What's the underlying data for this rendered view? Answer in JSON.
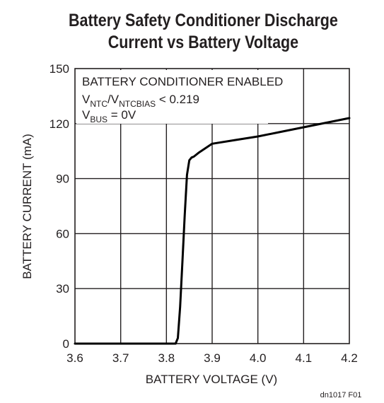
{
  "chart_data": {
    "type": "line",
    "title_line1": "Battery Safety Conditioner Discharge",
    "title_line2": "Current vs Battery Voltage",
    "xlabel": "BATTERY VOLTAGE (V)",
    "ylabel": "BATTERY CURRENT (mA)",
    "xlim": [
      3.6,
      4.2
    ],
    "ylim": [
      0,
      150
    ],
    "x_ticks": [
      3.6,
      3.7,
      3.8,
      3.9,
      4.0,
      4.1,
      4.2
    ],
    "x_tick_labels": [
      "3.6",
      "3.7",
      "3.8",
      "3.9",
      "4.0",
      "4.1",
      "4.2"
    ],
    "y_ticks": [
      0,
      30,
      60,
      90,
      120,
      150
    ],
    "y_tick_labels": [
      "0",
      "30",
      "60",
      "90",
      "120",
      "150"
    ],
    "grid": true,
    "annotations": {
      "line1": "BATTERY CONDITIONER ENABLED",
      "line2_a": "V",
      "line2_a_sub": "NTC",
      "line2_b": "/V",
      "line2_b_sub": "NTCBIAS",
      "line2_c": " < 0.219",
      "line3_a": "V",
      "line3_a_sub": "BUS",
      "line3_b": " = 0V"
    },
    "figure_code": "dn1017 F01",
    "series": [
      {
        "x": [
          3.6,
          3.7,
          3.8,
          3.82,
          3.825,
          3.83,
          3.835,
          3.84,
          3.845,
          3.85,
          3.855,
          3.86,
          3.87,
          3.9,
          3.95,
          4.0,
          4.05,
          4.1,
          4.15,
          4.2
        ],
        "values": [
          0,
          0,
          0,
          0,
          3,
          20,
          45,
          70,
          92,
          100,
          101.5,
          102,
          104,
          109,
          111,
          113,
          115.5,
          118,
          120.5,
          123
        ]
      }
    ]
  }
}
